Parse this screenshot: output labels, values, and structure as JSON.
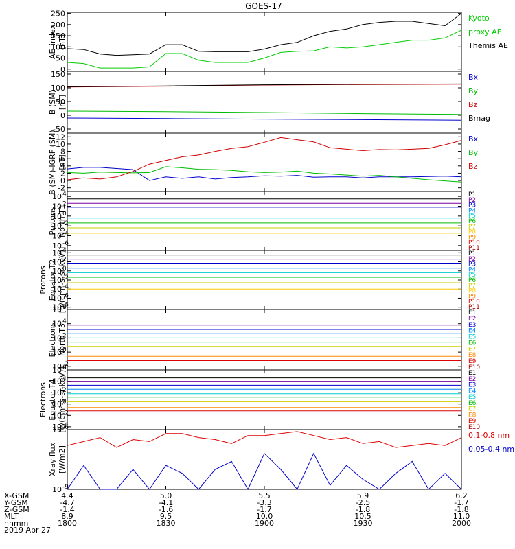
{
  "title": "GOES-17",
  "date": "2019 Apr 27",
  "panels": [
    {
      "id": "ae",
      "ylabel": [
        "AE_index",
        "[nT]"
      ],
      "yticks": [
        "250",
        "200",
        "150",
        "100",
        "50",
        "0"
      ],
      "yvals": [
        250,
        200,
        150,
        100,
        50,
        0
      ],
      "ylim": [
        -10,
        255
      ],
      "log": false,
      "legend": [
        {
          "text": "Kyoto",
          "color": "#00cc00"
        },
        {
          "text": "proxy AE",
          "color": "#00cc00"
        },
        {
          "text": "Themis AE",
          "color": "#000000"
        }
      ]
    },
    {
      "id": "b",
      "ylabel": [
        "B (SM)",
        "[nT]"
      ],
      "yticks": [
        "150",
        "100",
        "50",
        "0",
        "-50"
      ],
      "yvals": [
        150,
        100,
        50,
        0,
        -50
      ],
      "ylim": [
        -65,
        160
      ],
      "log": false,
      "legend": [
        {
          "text": "Bx",
          "color": "#0000cc"
        },
        {
          "text": "By",
          "color": "#00bb00"
        },
        {
          "text": "Bz",
          "color": "#cc0000"
        },
        {
          "text": "Bmag",
          "color": "#000000"
        }
      ]
    },
    {
      "id": "db",
      "ylabel": [
        "B (SM)-IGRF (SM)",
        "[nT]"
      ],
      "yticks": [
        "12",
        "10",
        "8",
        "6",
        "4",
        "2",
        "0",
        "-2"
      ],
      "yvals": [
        12,
        10,
        8,
        6,
        4,
        2,
        0,
        -2
      ],
      "ylim": [
        -3,
        13
      ],
      "log": false,
      "legend": [
        {
          "text": "Bx",
          "color": "#0000cc"
        },
        {
          "text": "By",
          "color": "#00bb00"
        },
        {
          "text": "Bz",
          "color": "#cc0000"
        }
      ]
    },
    {
      "id": "pn",
      "ylabel": [
        "Protons",
        "North T1"
      ],
      "yticks": [
        "10",
        "10",
        "10",
        "10",
        "10",
        "10"
      ],
      "yexp": [
        "4",
        "2",
        "0",
        "-2",
        "-4",
        "-6"
      ],
      "yvals": [
        4,
        2,
        0,
        -2,
        -4,
        -6
      ],
      "ylim": [
        -7,
        5
      ],
      "log": true,
      "legend": [
        {
          "text": "P1",
          "color": "#000000"
        },
        {
          "text": "P2",
          "color": "#7b00a0"
        },
        {
          "text": "P3",
          "color": "#0000cc"
        },
        {
          "text": "P4",
          "color": "#0088ff"
        },
        {
          "text": "P5",
          "color": "#00cccc"
        },
        {
          "text": "P6",
          "color": "#00bb00"
        },
        {
          "text": "P7",
          "color": "#cccc00"
        },
        {
          "text": "P8",
          "color": "#ffcc00"
        },
        {
          "text": "P9",
          "color": "#ff8800"
        },
        {
          "text": "P10",
          "color": "#dd0000"
        },
        {
          "text": "P11",
          "color": "#aa0000"
        }
      ]
    },
    {
      "id": "pe",
      "ylabel": [
        "Protons",
        "Equator T2",
        "[p/(cm²-s-sr-keV)]"
      ],
      "yticks": [
        "10",
        "10",
        "10",
        "10",
        "10",
        "10",
        "10"
      ],
      "yexp": [
        "4",
        "2",
        "0",
        "-2",
        "-4",
        "-6",
        "-8"
      ],
      "yvals": [
        4,
        2,
        0,
        -2,
        -4,
        -6,
        -8
      ],
      "ylim": [
        -8.5,
        4.5
      ],
      "log": true,
      "legend": [
        {
          "text": "P1",
          "color": "#000000"
        },
        {
          "text": "P2",
          "color": "#7b00a0"
        },
        {
          "text": "P3",
          "color": "#0000cc"
        },
        {
          "text": "P4",
          "color": "#0088ff"
        },
        {
          "text": "P5",
          "color": "#00cccc"
        },
        {
          "text": "P6",
          "color": "#00bb00"
        },
        {
          "text": "P7",
          "color": "#cccc00"
        },
        {
          "text": "P8",
          "color": "#ffcc00"
        },
        {
          "text": "P9",
          "color": "#ff8800"
        },
        {
          "text": "P10",
          "color": "#dd0000"
        },
        {
          "text": "P11",
          "color": "#aa0000"
        }
      ]
    },
    {
      "id": "en",
      "ylabel": [
        "Electrons",
        "North T3"
      ],
      "yticks": [
        "10",
        "10",
        "10",
        "10",
        "10"
      ],
      "yexp": [
        "6",
        "4",
        "2",
        "0",
        "-2"
      ],
      "yvals": [
        6,
        4,
        2,
        0,
        -2
      ],
      "ylim": [
        -2.5,
        6
      ],
      "log": true,
      "legend": [
        {
          "text": "E1",
          "color": "#000000"
        },
        {
          "text": "E2",
          "color": "#7b00a0"
        },
        {
          "text": "E3",
          "color": "#0000cc"
        },
        {
          "text": "E4",
          "color": "#0088ff"
        },
        {
          "text": "E5",
          "color": "#00cccc"
        },
        {
          "text": "E6",
          "color": "#00bb00"
        },
        {
          "text": "E7",
          "color": "#cccc00"
        },
        {
          "text": "E8",
          "color": "#ff8800"
        },
        {
          "text": "E9",
          "color": "#dd0000"
        },
        {
          "text": "E10",
          "color": "#aa0000"
        }
      ]
    },
    {
      "id": "ee",
      "ylabel": [
        "Electrons",
        "Equator T4",
        "[e/(cm²-s-sr-keV)]"
      ],
      "yticks": [
        "10",
        "10",
        "10",
        "10",
        "10",
        "10"
      ],
      "yexp": [
        "6",
        "4",
        "2",
        "0",
        "-2",
        "-4"
      ],
      "yvals": [
        6,
        4,
        2,
        0,
        -2,
        -4
      ],
      "ylim": [
        -4.5,
        6
      ],
      "log": true,
      "legend": [
        {
          "text": "E1",
          "color": "#000000"
        },
        {
          "text": "E2",
          "color": "#7b00a0"
        },
        {
          "text": "E3",
          "color": "#0000cc"
        },
        {
          "text": "E4",
          "color": "#0088ff"
        },
        {
          "text": "E5",
          "color": "#00cccc"
        },
        {
          "text": "E6",
          "color": "#00bb00"
        },
        {
          "text": "E7",
          "color": "#cccc00"
        },
        {
          "text": "E8",
          "color": "#ff8800"
        },
        {
          "text": "E9",
          "color": "#dd0000"
        },
        {
          "text": "E10",
          "color": "#aa0000"
        }
      ]
    },
    {
      "id": "xr",
      "ylabel": [
        "Xray flux",
        "[W/m2]"
      ],
      "yticks": [
        "10",
        "10"
      ],
      "yexp": [
        "-6",
        "-9"
      ],
      "yvals": [
        -6,
        -9
      ],
      "ylim": [
        -9,
        -6
      ],
      "log": true,
      "legend": [
        {
          "text": "0.1-0.8 nm",
          "color": "#dd0000"
        },
        {
          "text": "0.05-0.4 nm",
          "color": "#0000cc"
        }
      ]
    }
  ],
  "xaxis": {
    "rows": [
      {
        "label": "X-GSM",
        "values": [
          "4.4",
          "5.0",
          "5.5",
          "5.9",
          "6.2"
        ]
      },
      {
        "label": "Y-GSM",
        "values": [
          "-4.7",
          "-4.1",
          "-3.3",
          "-2.5",
          "-1.7"
        ]
      },
      {
        "label": "Z-GSM",
        "values": [
          "-1.4",
          "-1.6",
          "-1.7",
          "-1.8",
          "-1.8"
        ]
      },
      {
        "label": "MLT",
        "values": [
          "8.9",
          "9.5",
          "10.0",
          "10.5",
          "11.0"
        ]
      },
      {
        "label": "hhmm",
        "values": [
          "1800",
          "1830",
          "1900",
          "1930",
          "2000"
        ]
      }
    ]
  },
  "chart_data": [
    {
      "type": "line",
      "panel": "ae",
      "x": [
        0,
        5,
        10,
        15,
        20,
        25,
        30,
        35,
        40,
        45,
        50,
        55,
        60,
        65,
        70,
        75,
        80,
        85,
        90,
        95,
        100,
        105,
        110,
        115,
        120
      ],
      "series": [
        {
          "name": "Themis AE",
          "color": "#000000",
          "values": [
            92,
            88,
            68,
            62,
            65,
            68,
            110,
            110,
            80,
            78,
            78,
            78,
            90,
            110,
            120,
            150,
            170,
            180,
            200,
            210,
            215,
            215,
            205,
            195,
            250
          ]
        },
        {
          "name": "Kyoto proxy AE",
          "color": "#00cc00",
          "values": [
            30,
            25,
            5,
            5,
            5,
            10,
            70,
            70,
            40,
            30,
            30,
            30,
            50,
            75,
            80,
            82,
            100,
            95,
            100,
            110,
            120,
            130,
            130,
            140,
            175
          ]
        }
      ]
    },
    {
      "type": "line",
      "panel": "b",
      "x": [
        0,
        30,
        60,
        90,
        120
      ],
      "series": [
        {
          "name": "Bx",
          "color": "#0000cc",
          "values": [
            -10,
            -12,
            -14,
            -16,
            -18
          ]
        },
        {
          "name": "By",
          "color": "#00bb00",
          "values": [
            15,
            13,
            10,
            6,
            3
          ]
        },
        {
          "name": "Bz",
          "color": "#cc0000",
          "values": [
            103,
            106,
            110,
            112,
            113
          ]
        },
        {
          "name": "Bmag",
          "color": "#000000",
          "values": [
            104,
            107,
            111,
            113,
            114
          ]
        }
      ]
    },
    {
      "type": "line",
      "panel": "db",
      "x": [
        0,
        5,
        10,
        15,
        20,
        25,
        30,
        35,
        40,
        45,
        50,
        55,
        60,
        65,
        70,
        75,
        80,
        85,
        90,
        95,
        100,
        105,
        110,
        115,
        120
      ],
      "series": [
        {
          "name": "Bx",
          "color": "#0000cc",
          "values": [
            3.2,
            3.6,
            3.6,
            3.3,
            3.0,
            0.0,
            1.0,
            0.6,
            1.0,
            0.4,
            0.8,
            1.0,
            1.3,
            1.2,
            1.4,
            0.9,
            1.0,
            1.0,
            0.7,
            1.0,
            1.0,
            1.0,
            1.1,
            1.2,
            1.0
          ]
        },
        {
          "name": "By",
          "color": "#00bb00",
          "values": [
            2.2,
            2.0,
            2.3,
            2.2,
            2.1,
            2.2,
            3.8,
            3.5,
            3.1,
            3.0,
            2.8,
            2.4,
            2.2,
            2.3,
            2.6,
            2.0,
            1.8,
            1.5,
            1.2,
            1.4,
            1.0,
            0.6,
            0.2,
            -0.1,
            -0.4
          ]
        },
        {
          "name": "Bz",
          "color": "#cc0000",
          "values": [
            0.2,
            0.7,
            0.4,
            1.0,
            2.5,
            4.5,
            5.5,
            6.5,
            7.0,
            8.0,
            8.8,
            9.3,
            10.5,
            11.8,
            11.2,
            10.6,
            9.0,
            8.6,
            8.2,
            8.5,
            8.4,
            8.6,
            8.8,
            9.8,
            11.0
          ]
        }
      ]
    },
    {
      "type": "line",
      "panel": "pn",
      "x": [
        0,
        120
      ],
      "series": [
        {
          "name": "P1",
          "color": "#000000",
          "values": [
            3.5,
            3.5
          ]
        },
        {
          "name": "P2",
          "color": "#7b00a0",
          "values": [
            2.6,
            2.6
          ]
        },
        {
          "name": "P3",
          "color": "#0000cc",
          "values": [
            1.8,
            1.8
          ]
        },
        {
          "name": "P4",
          "color": "#0088ff",
          "values": [
            0.6,
            0.6
          ]
        },
        {
          "name": "P5",
          "color": "#00cccc",
          "values": [
            -0.4,
            -0.4
          ]
        },
        {
          "name": "P6",
          "color": "#00bb00",
          "values": [
            -1.4,
            -1.4
          ]
        },
        {
          "name": "P7",
          "color": "#cccc00",
          "values": [
            -2.4,
            -2.4
          ]
        },
        {
          "name": "P8",
          "color": "#ffcc00",
          "values": [
            -3.5,
            -3.5
          ]
        }
      ]
    },
    {
      "type": "line",
      "panel": "pe",
      "x": [
        0,
        120
      ],
      "series": [
        {
          "name": "P1",
          "color": "#000000",
          "values": [
            3.5,
            3.5
          ]
        },
        {
          "name": "P2",
          "color": "#7b00a0",
          "values": [
            2.6,
            2.6
          ]
        },
        {
          "name": "P3",
          "color": "#0000cc",
          "values": [
            1.7,
            1.7
          ]
        },
        {
          "name": "P4",
          "color": "#0088ff",
          "values": [
            0.6,
            0.6
          ]
        },
        {
          "name": "P5",
          "color": "#00cccc",
          "values": [
            -0.4,
            -0.4
          ]
        },
        {
          "name": "P6",
          "color": "#00bb00",
          "values": [
            -1.4,
            -1.4
          ]
        },
        {
          "name": "P7",
          "color": "#cccc00",
          "values": [
            -2.6,
            -2.6
          ]
        },
        {
          "name": "P8",
          "color": "#ffcc00",
          "values": [
            -4.0,
            -4.0
          ]
        }
      ]
    },
    {
      "type": "line",
      "panel": "en",
      "x": [
        0,
        120
      ],
      "series": [
        {
          "name": "E1",
          "color": "#000000",
          "values": [
            4.5,
            4.5
          ]
        },
        {
          "name": "E2",
          "color": "#7b00a0",
          "values": [
            3.8,
            3.8
          ]
        },
        {
          "name": "E3",
          "color": "#0000cc",
          "values": [
            3.2,
            3.2
          ]
        },
        {
          "name": "E4",
          "color": "#0088ff",
          "values": [
            2.6,
            2.6
          ]
        },
        {
          "name": "E5",
          "color": "#00cccc",
          "values": [
            2.0,
            2.0
          ]
        },
        {
          "name": "E6",
          "color": "#00bb00",
          "values": [
            1.4,
            1.4
          ]
        },
        {
          "name": "E7",
          "color": "#cccc00",
          "values": [
            0.8,
            0.8
          ]
        },
        {
          "name": "E8",
          "color": "#ff8800",
          "values": [
            -0.6,
            -0.6
          ]
        },
        {
          "name": "E9",
          "color": "#dd0000",
          "values": [
            -1.2,
            -1.2
          ]
        }
      ]
    },
    {
      "type": "line",
      "panel": "ee",
      "x": [
        0,
        120
      ],
      "series": [
        {
          "name": "E1",
          "color": "#000000",
          "values": [
            4.6,
            4.6
          ]
        },
        {
          "name": "E2",
          "color": "#7b00a0",
          "values": [
            4.0,
            4.0
          ]
        },
        {
          "name": "E3",
          "color": "#0000cc",
          "values": [
            3.3,
            3.3
          ]
        },
        {
          "name": "E4",
          "color": "#0088ff",
          "values": [
            2.6,
            2.6
          ]
        },
        {
          "name": "E5",
          "color": "#00cccc",
          "values": [
            1.8,
            1.8
          ]
        },
        {
          "name": "E6",
          "color": "#00bb00",
          "values": [
            1.2,
            1.2
          ]
        },
        {
          "name": "E7",
          "color": "#cccc00",
          "values": [
            0.4,
            0.4
          ]
        },
        {
          "name": "E8",
          "color": "#ff8800",
          "values": [
            -0.6,
            -0.6
          ]
        },
        {
          "name": "E9",
          "color": "#dd0000",
          "values": [
            -1.2,
            -1.2
          ]
        }
      ]
    },
    {
      "type": "line",
      "panel": "xr",
      "x": [
        0,
        5,
        10,
        15,
        20,
        25,
        30,
        35,
        40,
        45,
        50,
        55,
        60,
        65,
        70,
        75,
        80,
        85,
        90,
        95,
        100,
        105,
        110,
        115,
        120
      ],
      "series": [
        {
          "name": "0.1-0.8 nm",
          "color": "#dd0000",
          "values": [
            -6.8,
            -6.6,
            -6.4,
            -6.9,
            -6.5,
            -6.6,
            -6.2,
            -6.2,
            -6.4,
            -6.5,
            -6.7,
            -6.3,
            -6.3,
            -6.2,
            -6.1,
            -6.3,
            -6.5,
            -6.4,
            -6.7,
            -6.6,
            -6.9,
            -6.8,
            -6.7,
            -6.8,
            -6.4
          ]
        },
        {
          "name": "0.05-0.4 nm",
          "color": "#0000cc",
          "values": [
            -9.0,
            -7.8,
            -9.0,
            -9.0,
            -8.0,
            -9.0,
            -7.8,
            -8.2,
            -9.0,
            -8.0,
            -7.6,
            -9.0,
            -7.2,
            -8.0,
            -9.0,
            -7.2,
            -8.8,
            -7.8,
            -8.5,
            -9.0,
            -8.2,
            -7.6,
            -9.0,
            -8.2,
            -9.0
          ]
        }
      ]
    }
  ]
}
